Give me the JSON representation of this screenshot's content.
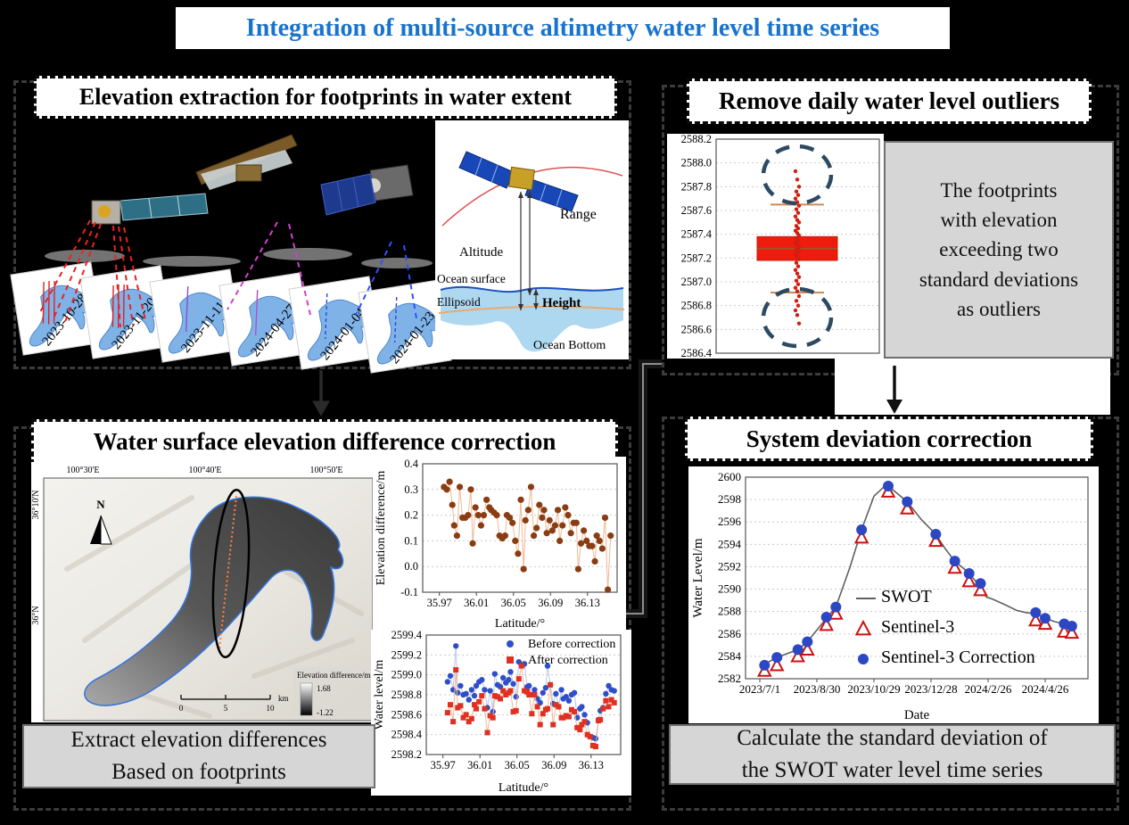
{
  "title": "Integration of multi-source altimetry water level time series",
  "colors": {
    "title_blue": "#1873cc",
    "box_red": "#ee1c0c",
    "boxplot_median": "#9a5a30",
    "whisker_tan": "#c98c5a",
    "outlier_ellipse": "#2d4a63",
    "scatter_brown": "#8a3c12",
    "scatter_line_orange": "#f2b894",
    "before_blue": "#2f4fc8",
    "after_red": "#e03020",
    "swot_gray": "#606060",
    "sentinel3_red": "#cc1111",
    "sentinel3corr_blue": "#2b47c4"
  },
  "panels": {
    "elevation_extraction": {
      "header": "Elevation extraction for footprints in water extent",
      "footprints": [
        {
          "date": "2023-10-28",
          "track": {
            "color": "#e02020",
            "dash": "none",
            "multi": true
          }
        },
        {
          "date": "2023-11-20",
          "track": {
            "color": "#e02020",
            "dash": "none",
            "multi": true
          }
        },
        {
          "date": "2023-11-11",
          "track": {
            "color": "#8a4fd0",
            "dash": "none",
            "multi": false
          }
        },
        {
          "date": "2024-04-27",
          "track": {
            "color": "#b050c8",
            "dash": "none",
            "multi": false
          }
        },
        {
          "date": "2024-01-04",
          "track": {
            "color": "#2848d8",
            "dash": "4 3",
            "multi": false
          }
        },
        {
          "date": "2024-01-23",
          "track": {
            "color": "#2848d8",
            "dash": "4 3",
            "multi": false
          }
        }
      ],
      "schematic": {
        "range": "Range",
        "altitude": "Altitude",
        "ocean_surface": "Ocean surface",
        "ellipsoid": "Ellipsoid",
        "height": "Height",
        "ocean_bottom": "Ocean Bottom"
      }
    },
    "remove_outliers": {
      "header": "Remove daily water level outliers",
      "note_lines": [
        "The footprints",
        "with elevation",
        "exceeding two",
        "standard deviations",
        "as outliers"
      ]
    },
    "difference_correction": {
      "header": "Water surface elevation difference correction",
      "note_lines": [
        "Extract elevation differences",
        "Based on footprints"
      ],
      "map": {
        "lon_ticks": [
          "100°30'E",
          "100°40'E",
          "100°50'E"
        ],
        "lat_ticks": [
          "36°10'N",
          "36°N"
        ],
        "north": "N",
        "legend_title": "Elevation difference/m",
        "legend_max": "1.68",
        "legend_min": "-1.22",
        "scale_ticks": [
          "0",
          "5",
          "10"
        ],
        "scale_unit": "km"
      }
    },
    "system_deviation": {
      "header": "System deviation correction",
      "note_lines": [
        "Calculate the standard deviation of",
        "the SWOT water level time series"
      ]
    }
  },
  "chart_data": [
    {
      "type": "boxplot",
      "ylabel": "",
      "ylim": [
        2586.4,
        2588.2
      ],
      "yticks": [
        2586.4,
        2586.6,
        2586.8,
        2587.0,
        2587.2,
        2587.4,
        2587.6,
        2587.8,
        2588.0,
        2588.2
      ],
      "box": {
        "q1": 2587.18,
        "q3": 2587.38,
        "median": 2587.28,
        "whisker_low": 2586.91,
        "whisker_high": 2587.65
      },
      "points": [
        2587.93,
        2587.86,
        2587.8,
        2587.76,
        2587.73,
        2587.7,
        2587.67,
        2587.64,
        2587.61,
        2587.58,
        2587.55,
        2587.52,
        2587.5,
        2587.47,
        2587.45,
        2587.43,
        2587.41,
        2587.39,
        2587.37,
        2587.35,
        2587.33,
        2587.31,
        2587.29,
        2587.27,
        2587.25,
        2587.23,
        2587.21,
        2587.19,
        2587.16,
        2587.13,
        2587.1,
        2587.07,
        2587.04,
        2587.01,
        2586.98,
        2586.95,
        2586.92,
        2586.88,
        2586.84,
        2586.8,
        2586.76,
        2586.72,
        2586.65
      ],
      "outlier_circles": [
        {
          "center": 2587.9,
          "half_range": 0.24
        },
        {
          "center": 2586.7,
          "half_range": 0.24
        }
      ],
      "grid": "y"
    },
    {
      "type": "scatter",
      "title": "",
      "xlabel": "Latitude/°",
      "ylabel": "Elevation difference/m",
      "xlim": [
        35.952,
        36.162
      ],
      "ylim": [
        -0.1,
        0.4
      ],
      "xticks": [
        35.97,
        36.01,
        36.05,
        36.09,
        36.13
      ],
      "yticks": [
        -0.1,
        0.0,
        0.1,
        0.2,
        0.3,
        0.4
      ],
      "x": [
        35.975,
        35.978,
        35.981,
        35.984,
        35.986,
        35.989,
        35.992,
        35.995,
        35.998,
        36.001,
        36.004,
        36.006,
        36.009,
        36.012,
        36.015,
        36.018,
        36.021,
        36.024,
        36.026,
        36.029,
        36.032,
        36.035,
        36.038,
        36.041,
        36.043,
        36.046,
        36.049,
        36.052,
        36.055,
        36.058,
        36.061,
        36.063,
        36.066,
        36.069,
        36.072,
        36.075,
        36.078,
        36.081,
        36.083,
        36.086,
        36.089,
        36.092,
        36.095,
        36.098,
        36.1,
        36.103,
        36.106,
        36.109,
        36.112,
        36.115,
        36.118,
        36.12,
        36.123,
        36.126,
        36.129,
        36.132,
        36.135,
        36.138,
        36.14,
        36.143,
        36.146,
        36.149,
        36.152,
        36.155
      ],
      "y": [
        0.31,
        0.3,
        0.33,
        0.24,
        0.16,
        0.12,
        0.31,
        0.19,
        0.19,
        0.2,
        0.3,
        0.09,
        0.23,
        0.2,
        0.16,
        0.2,
        0.26,
        0.23,
        0.22,
        0.21,
        0.2,
        0.12,
        0.11,
        0.12,
        0.2,
        0.19,
        0.17,
        0.1,
        0.05,
        0.26,
        -0.01,
        0.18,
        0.22,
        0.31,
        0.12,
        0.15,
        0.24,
        0.19,
        0.22,
        0.13,
        0.18,
        0.14,
        0.16,
        0.22,
        0.1,
        0.16,
        0.23,
        0.2,
        0.13,
        0.17,
        0.17,
        -0.01,
        0.09,
        0.14,
        0.1,
        0.08,
        0.08,
        0.02,
        0.12,
        0.1,
        0.07,
        0.19,
        -0.09,
        0.12
      ],
      "grid": "y"
    },
    {
      "type": "scatter",
      "xlabel": "Latitude/°",
      "ylabel": "Water level/m",
      "xlim": [
        35.952,
        36.162
      ],
      "ylim": [
        2598.2,
        2599.4
      ],
      "xticks": [
        35.97,
        36.01,
        36.05,
        36.09,
        36.13
      ],
      "yticks": [
        2598.2,
        2598.4,
        2598.6,
        2598.8,
        2599.0,
        2599.2,
        2599.4
      ],
      "x": [
        35.975,
        35.978,
        35.981,
        35.984,
        35.986,
        35.989,
        35.992,
        35.995,
        35.998,
        36.001,
        36.004,
        36.006,
        36.009,
        36.012,
        36.015,
        36.018,
        36.021,
        36.024,
        36.026,
        36.029,
        36.032,
        36.035,
        36.038,
        36.041,
        36.043,
        36.046,
        36.049,
        36.052,
        36.055,
        36.058,
        36.061,
        36.063,
        36.066,
        36.069,
        36.072,
        36.075,
        36.078,
        36.081,
        36.083,
        36.086,
        36.089,
        36.092,
        36.095,
        36.098,
        36.1,
        36.103,
        36.106,
        36.109,
        36.112,
        36.115,
        36.118,
        36.12,
        36.123,
        36.126,
        36.129,
        36.132,
        36.135,
        36.138,
        36.14,
        36.143,
        36.146,
        36.149,
        36.152,
        36.155
      ],
      "series": [
        {
          "name": "Before correction",
          "values": [
            2598.93,
            2598.99,
            2598.85,
            2599.29,
            2598.82,
            2598.89,
            2598.8,
            2598.81,
            2598.75,
            2598.85,
            2598.79,
            2598.89,
            2598.93,
            2598.95,
            2598.85,
            2598.67,
            2598.84,
            2598.63,
            2599.01,
            2598.9,
            2598.88,
            2598.97,
            2598.92,
            2598.95,
            2599.03,
            2598.91,
            2598.78,
            2599.13,
            2599.1,
            2599.11,
            2598.88,
            2598.89,
            2598.8,
            2598.85,
            2598.76,
            2598.72,
            2598.82,
            2598.87,
            2599.09,
            2598.9,
            2598.71,
            2598.81,
            2598.68,
            2598.85,
            2598.76,
            2598.78,
            2598.74,
            2598.8,
            2598.82,
            2598.57,
            2598.66,
            2598.68,
            2598.6,
            2598.52,
            2598.38,
            2598.37,
            2598.36,
            2598.55,
            2598.64,
            2598.67,
            2598.81,
            2598.89,
            2598.85,
            2598.84
          ]
        },
        {
          "name": "After correction",
          "values": [
            2598.62,
            2598.7,
            2598.53,
            2599.05,
            2598.67,
            2598.69,
            2598.57,
            2598.6,
            2598.53,
            2598.56,
            2598.7,
            2598.66,
            2598.73,
            2598.79,
            2598.66,
            2598.42,
            2598.59,
            2598.57,
            2598.79,
            2598.78,
            2598.76,
            2598.84,
            2598.8,
            2598.82,
            2598.84,
            2598.63,
            2598.64,
            2598.96,
            2599.09,
            2598.84,
            2598.83,
            2598.8,
            2598.61,
            2598.8,
            2598.68,
            2598.5,
            2598.61,
            2598.65,
            2598.66,
            2598.9,
            2598.5,
            2598.7,
            2598.68,
            2598.57,
            2598.57,
            2598.59,
            2598.58,
            2598.65,
            2598.63,
            2598.47,
            2598.45,
            2598.5,
            2598.53,
            2598.4,
            2598.38,
            2598.29,
            2598.28,
            2598.54,
            2598.55,
            2598.66,
            2598.74,
            2598.68,
            2598.75,
            2598.72
          ]
        }
      ],
      "legend": [
        "Before correction",
        "After correction"
      ],
      "grid": "y"
    },
    {
      "type": "line",
      "xlabel": "Date",
      "ylabel": "Water Level/m",
      "ylim": [
        2582,
        2600
      ],
      "yticks": [
        2582,
        2584,
        2586,
        2588,
        2590,
        2592,
        2594,
        2596,
        2598,
        2600
      ],
      "xtick_labels": [
        "2023/7/1",
        "2023/8/30",
        "2023/10/29",
        "2023/12/28",
        "2024/2/26",
        "2024/4/26"
      ],
      "xtick_days": [
        0,
        60,
        120,
        180,
        240,
        300
      ],
      "series": [
        {
          "name": "SWOT",
          "style": "line",
          "x": [
            5,
            18,
            40,
            50,
            70,
            80,
            95,
            107,
            120,
            130,
            135,
            145,
            155,
            170,
            185,
            195,
            205,
            215,
            220,
            228,
            232,
            238,
            245,
            258,
            270,
            280,
            290,
            300,
            310,
            320,
            328
          ],
          "values": [
            2583.3,
            2583.9,
            2584.6,
            2585.3,
            2587.4,
            2588.4,
            2592.0,
            2595.3,
            2598.3,
            2599.1,
            2599.2,
            2598.5,
            2597.8,
            2596.2,
            2594.9,
            2593.6,
            2592.5,
            2591.8,
            2591.4,
            2590.6,
            2590.2,
            2589.3,
            2589.1,
            2588.6,
            2588.1,
            2587.9,
            2587.8,
            2587.4,
            2587.1,
            2586.9,
            2586.8
          ]
        },
        {
          "name": "Sentinel-3",
          "style": "open-triangle",
          "x": [
            5,
            18,
            40,
            50,
            70,
            80,
            107,
            135,
            155,
            185,
            205,
            220,
            232,
            290,
            300,
            320,
            328
          ],
          "values": [
            2582.7,
            2583.2,
            2584.0,
            2584.6,
            2586.8,
            2587.8,
            2594.6,
            2598.7,
            2597.2,
            2594.3,
            2591.9,
            2590.7,
            2589.9,
            2587.2,
            2586.9,
            2586.2,
            2586.1
          ]
        },
        {
          "name": "Sentinel-3 Correction",
          "style": "filled-circle",
          "x": [
            5,
            18,
            40,
            50,
            70,
            80,
            107,
            135,
            155,
            185,
            205,
            220,
            232,
            290,
            300,
            320,
            328
          ],
          "values": [
            2583.2,
            2583.9,
            2584.6,
            2585.3,
            2587.5,
            2588.4,
            2595.3,
            2599.2,
            2597.8,
            2594.9,
            2592.5,
            2591.4,
            2590.5,
            2587.9,
            2587.4,
            2586.9,
            2586.7
          ]
        }
      ],
      "legend": [
        "SWOT",
        "Sentinel-3",
        "Sentinel-3 Correction"
      ],
      "legend_position": "center",
      "grid": "y"
    }
  ]
}
